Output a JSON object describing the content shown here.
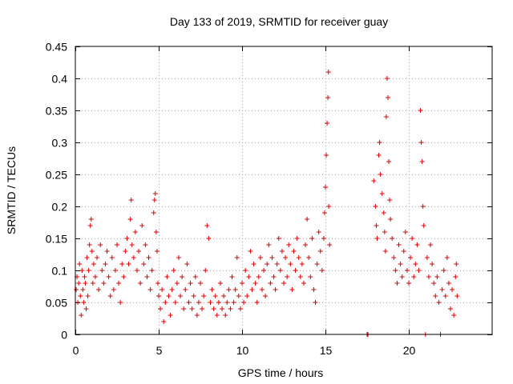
{
  "chart_data": {
    "type": "scatter",
    "title": "Day 133 of 2019, SRMTID for receiver guay",
    "xlabel": "GPS time / hours",
    "ylabel": "SRMTID / TECUs",
    "xlim": [
      0,
      25
    ],
    "ylim": [
      0,
      0.45
    ],
    "xticks": [
      0,
      5,
      10,
      15,
      20
    ],
    "xtick_labels": [
      "0",
      "5",
      "10",
      "15",
      "20"
    ],
    "yticks": [
      0,
      0.05,
      0.1,
      0.15,
      0.2,
      0.25,
      0.3,
      0.35,
      0.4,
      0.45
    ],
    "ytick_labels": [
      "0",
      "0.05",
      "0.1",
      "0.15",
      "0.2",
      "0.25",
      "0.3",
      "0.35",
      "0.4",
      "0.45"
    ],
    "grid": true,
    "marker": "+",
    "marker_color": "#e00000",
    "series": [
      {
        "name": "guay",
        "points": [
          [
            0.05,
            0.07
          ],
          [
            0.1,
            0.09
          ],
          [
            0.15,
            0.05
          ],
          [
            0.2,
            0.08
          ],
          [
            0.25,
            0.11
          ],
          [
            0.3,
            0.06
          ],
          [
            0.35,
            0.03
          ],
          [
            0.4,
            0.1
          ],
          [
            0.45,
            0.07
          ],
          [
            0.5,
            0.05
          ],
          [
            0.55,
            0.09
          ],
          [
            0.6,
            0.08
          ],
          [
            0.65,
            0.04
          ],
          [
            0.7,
            0.12
          ],
          [
            0.75,
            0.06
          ],
          [
            0.8,
            0.1
          ],
          [
            0.85,
            0.14
          ],
          [
            0.9,
            0.17
          ],
          [
            0.95,
            0.18
          ],
          [
            1.0,
            0.13
          ],
          [
            1.05,
            0.08
          ],
          [
            1.1,
            0.11
          ],
          [
            1.2,
            0.09
          ],
          [
            1.3,
            0.12
          ],
          [
            1.4,
            0.07
          ],
          [
            1.5,
            0.14
          ],
          [
            1.6,
            0.1
          ],
          [
            1.7,
            0.08
          ],
          [
            1.8,
            0.11
          ],
          [
            1.9,
            0.13
          ],
          [
            2.0,
            0.09
          ],
          [
            2.1,
            0.06
          ],
          [
            2.2,
            0.12
          ],
          [
            2.3,
            0.07
          ],
          [
            2.4,
            0.1
          ],
          [
            2.5,
            0.14
          ],
          [
            2.6,
            0.08
          ],
          [
            2.7,
            0.05
          ],
          [
            2.8,
            0.11
          ],
          [
            2.9,
            0.09
          ],
          [
            3.0,
            0.13
          ],
          [
            3.1,
            0.15
          ],
          [
            3.2,
            0.11
          ],
          [
            3.3,
            0.18
          ],
          [
            3.35,
            0.21
          ],
          [
            3.4,
            0.14
          ],
          [
            3.5,
            0.12
          ],
          [
            3.6,
            0.16
          ],
          [
            3.7,
            0.1
          ],
          [
            3.8,
            0.13
          ],
          [
            3.9,
            0.08
          ],
          [
            4.0,
            0.17
          ],
          [
            4.1,
            0.11
          ],
          [
            4.2,
            0.14
          ],
          [
            4.3,
            0.09
          ],
          [
            4.4,
            0.12
          ],
          [
            4.5,
            0.07
          ],
          [
            4.6,
            0.1
          ],
          [
            4.7,
            0.19
          ],
          [
            4.75,
            0.21
          ],
          [
            4.8,
            0.22
          ],
          [
            4.85,
            0.16
          ],
          [
            4.9,
            0.13
          ],
          [
            4.95,
            0.08
          ],
          [
            5.0,
            0.06
          ],
          [
            5.1,
            0.04
          ],
          [
            5.2,
            0.07
          ],
          [
            5.3,
            0.02
          ],
          [
            5.4,
            0.05
          ],
          [
            5.5,
            0.09
          ],
          [
            5.6,
            0.06
          ],
          [
            5.7,
            0.03
          ],
          [
            5.8,
            0.07
          ],
          [
            5.9,
            0.1
          ],
          [
            6.0,
            0.05
          ],
          [
            6.1,
            0.08
          ],
          [
            6.2,
            0.12
          ],
          [
            6.3,
            0.06
          ],
          [
            6.4,
            0.09
          ],
          [
            6.5,
            0.04
          ],
          [
            6.6,
            0.07
          ],
          [
            6.7,
            0.11
          ],
          [
            6.8,
            0.05
          ],
          [
            6.9,
            0.08
          ],
          [
            7.0,
            0.04
          ],
          [
            7.1,
            0.06
          ],
          [
            7.2,
            0.09
          ],
          [
            7.3,
            0.03
          ],
          [
            7.4,
            0.05
          ],
          [
            7.5,
            0.08
          ],
          [
            7.6,
            0.04
          ],
          [
            7.7,
            0.06
          ],
          [
            7.8,
            0.1
          ],
          [
            7.9,
            0.17
          ],
          [
            8.0,
            0.15
          ],
          [
            8.1,
            0.05
          ],
          [
            8.2,
            0.07
          ],
          [
            8.3,
            0.04
          ],
          [
            8.4,
            0.06
          ],
          [
            8.5,
            0.03
          ],
          [
            8.6,
            0.05
          ],
          [
            8.7,
            0.08
          ],
          [
            8.8,
            0.04
          ],
          [
            8.9,
            0.06
          ],
          [
            9.0,
            0.03
          ],
          [
            9.1,
            0.05
          ],
          [
            9.2,
            0.07
          ],
          [
            9.3,
            0.04
          ],
          [
            9.4,
            0.09
          ],
          [
            9.5,
            0.05
          ],
          [
            9.6,
            0.07
          ],
          [
            9.7,
            0.12
          ],
          [
            9.8,
            0.06
          ],
          [
            9.9,
            0.04
          ],
          [
            10.0,
            0.08
          ],
          [
            10.1,
            0.05
          ],
          [
            10.2,
            0.1
          ],
          [
            10.3,
            0.06
          ],
          [
            10.4,
            0.09
          ],
          [
            10.5,
            0.13
          ],
          [
            10.6,
            0.07
          ],
          [
            10.7,
            0.11
          ],
          [
            10.8,
            0.08
          ],
          [
            10.9,
            0.05
          ],
          [
            11.0,
            0.09
          ],
          [
            11.1,
            0.12
          ],
          [
            11.2,
            0.07
          ],
          [
            11.3,
            0.1
          ],
          [
            11.4,
            0.06
          ],
          [
            11.5,
            0.11
          ],
          [
            11.6,
            0.14
          ],
          [
            11.7,
            0.08
          ],
          [
            11.8,
            0.12
          ],
          [
            11.9,
            0.09
          ],
          [
            12.0,
            0.07
          ],
          [
            12.1,
            0.11
          ],
          [
            12.2,
            0.15
          ],
          [
            12.3,
            0.1
          ],
          [
            12.4,
            0.13
          ],
          [
            12.5,
            0.08
          ],
          [
            12.6,
            0.12
          ],
          [
            12.7,
            0.09
          ],
          [
            12.8,
            0.14
          ],
          [
            12.9,
            0.11
          ],
          [
            13.0,
            0.07
          ],
          [
            13.1,
            0.13
          ],
          [
            13.2,
            0.1
          ],
          [
            13.3,
            0.15
          ],
          [
            13.4,
            0.12
          ],
          [
            13.5,
            0.09
          ],
          [
            13.6,
            0.11
          ],
          [
            13.7,
            0.08
          ],
          [
            13.8,
            0.14
          ],
          [
            13.9,
            0.18
          ],
          [
            14.0,
            0.12
          ],
          [
            14.1,
            0.09
          ],
          [
            14.2,
            0.15
          ],
          [
            14.3,
            0.07
          ],
          [
            14.4,
            0.05
          ],
          [
            14.5,
            0.11
          ],
          [
            14.6,
            0.16
          ],
          [
            14.7,
            0.13
          ],
          [
            14.8,
            0.1
          ],
          [
            14.9,
            0.15
          ],
          [
            14.95,
            0.19
          ],
          [
            15.0,
            0.23
          ],
          [
            15.05,
            0.28
          ],
          [
            15.1,
            0.33
          ],
          [
            15.15,
            0.37
          ],
          [
            15.18,
            0.41
          ],
          [
            15.2,
            0.2
          ],
          [
            15.25,
            0.14
          ],
          [
            17.5,
            0.0
          ],
          [
            17.55,
            0.0
          ],
          [
            17.9,
            0.24
          ],
          [
            18.0,
            0.2
          ],
          [
            18.05,
            0.17
          ],
          [
            18.1,
            0.15
          ],
          [
            18.2,
            0.28
          ],
          [
            18.25,
            0.3
          ],
          [
            18.3,
            0.25
          ],
          [
            18.4,
            0.22
          ],
          [
            18.5,
            0.19
          ],
          [
            18.55,
            0.16
          ],
          [
            18.6,
            0.13
          ],
          [
            18.65,
            0.34
          ],
          [
            18.7,
            0.4
          ],
          [
            18.75,
            0.37
          ],
          [
            18.8,
            0.27
          ],
          [
            18.85,
            0.21
          ],
          [
            18.9,
            0.18
          ],
          [
            19.0,
            0.15
          ],
          [
            19.1,
            0.12
          ],
          [
            19.2,
            0.1
          ],
          [
            19.3,
            0.08
          ],
          [
            19.4,
            0.14
          ],
          [
            19.5,
            0.11
          ],
          [
            19.6,
            0.09
          ],
          [
            19.7,
            0.13
          ],
          [
            19.8,
            0.16
          ],
          [
            19.9,
            0.1
          ],
          [
            20.0,
            0.08
          ],
          [
            20.1,
            0.12
          ],
          [
            20.2,
            0.15
          ],
          [
            20.3,
            0.09
          ],
          [
            20.4,
            0.11
          ],
          [
            20.5,
            0.14
          ],
          [
            20.6,
            0.1
          ],
          [
            20.7,
            0.35
          ],
          [
            20.75,
            0.3
          ],
          [
            20.8,
            0.27
          ],
          [
            20.85,
            0.2
          ],
          [
            20.9,
            0.17
          ],
          [
            21.0,
            0.0
          ],
          [
            21.1,
            0.12
          ],
          [
            21.2,
            0.09
          ],
          [
            21.3,
            0.14
          ],
          [
            21.4,
            0.11
          ],
          [
            21.5,
            0.08
          ],
          [
            21.6,
            0.06
          ],
          [
            21.7,
            0.09
          ],
          [
            21.8,
            0.05
          ],
          [
            21.9,
            0.0
          ],
          [
            22.0,
            0.07
          ],
          [
            22.1,
            0.1
          ],
          [
            22.2,
            0.06
          ],
          [
            22.3,
            0.12
          ],
          [
            22.4,
            0.08
          ],
          [
            22.5,
            0.04
          ],
          [
            22.6,
            0.07
          ],
          [
            22.7,
            0.03
          ],
          [
            22.8,
            0.09
          ],
          [
            22.85,
            0.11
          ],
          [
            22.9,
            0.06
          ]
        ]
      }
    ]
  }
}
